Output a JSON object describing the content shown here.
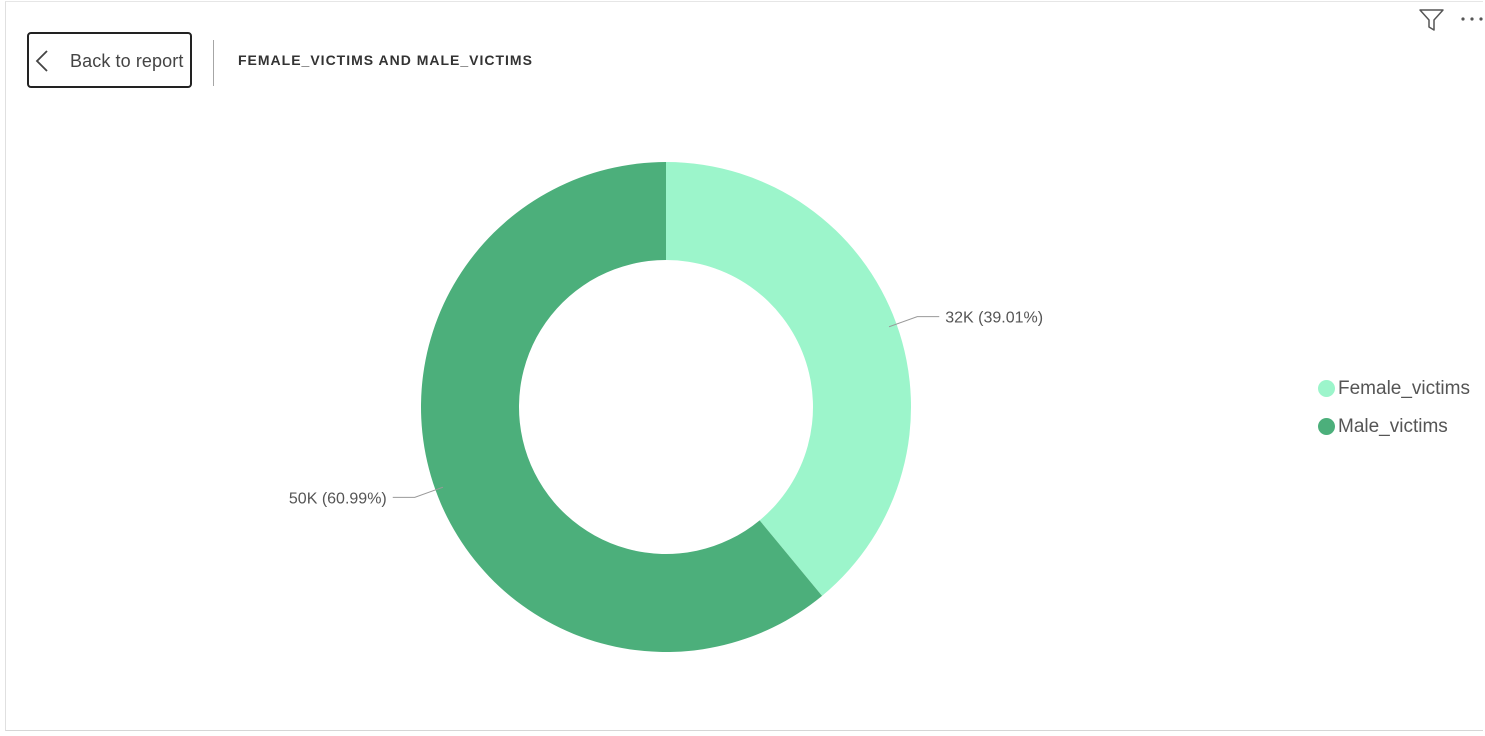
{
  "header": {
    "back_label": "Back to report",
    "title": "FEMALE_VICTIMS AND MALE_VICTIMS"
  },
  "toolbar": {
    "icons": [
      "filter-icon",
      "more-options-icon"
    ]
  },
  "colors": {
    "female": "#9CF5CB",
    "male": "#4CAF7B",
    "label_text": "#555555",
    "leader_line": "#999999"
  },
  "chart_data": {
    "type": "pie",
    "subtype": "donut",
    "legend_position": "right",
    "series": [
      {
        "name": "Female_victims",
        "value": 32,
        "percent": 39.01,
        "label": "32K (39.01%)",
        "color": "#9CF5CB"
      },
      {
        "name": "Male_victims",
        "value": 50,
        "percent": 60.99,
        "label": "50K (60.99%)",
        "color": "#4CAF7B"
      }
    ]
  }
}
